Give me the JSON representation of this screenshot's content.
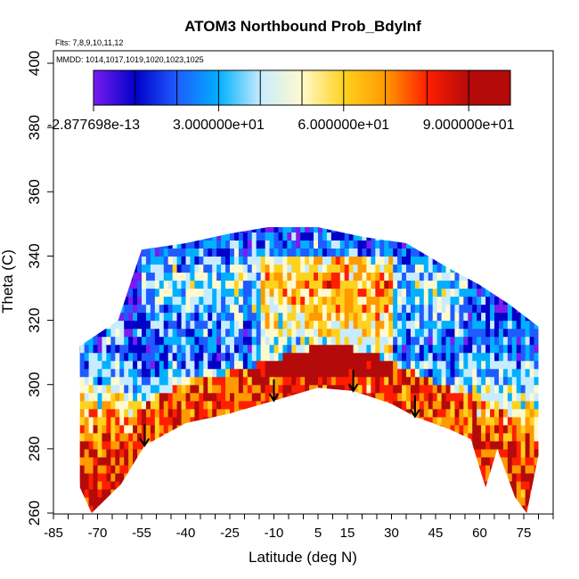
{
  "chart_data": {
    "type": "heatmap",
    "title": "ATOM3 Northbound Prob_BdyInf",
    "flights_note": "Flts: 7,8,9,10,11,12",
    "dates_note": "MMDD: 1014,1017,1019,1020,1023,1025",
    "xlabel": "Latitude (deg N)",
    "ylabel": "Theta (C)",
    "xlim": [
      -85,
      85
    ],
    "ylim": [
      260,
      400
    ],
    "x_ticks": [
      -85,
      -70,
      -55,
      -40,
      -25,
      -10,
      5,
      15,
      30,
      45,
      60,
      75
    ],
    "x_minor_step": 5,
    "y_ticks": [
      260,
      280,
      300,
      320,
      340,
      360,
      380,
      400
    ],
    "colorbar": {
      "ticks": [
        "-2.877698e-13",
        "3.000000e+01",
        "6.000000e+01",
        "9.000000e+01"
      ],
      "range": [
        0,
        100
      ],
      "n_bins": 10,
      "colors": [
        "#7a1cf0",
        "#0000c8",
        "#1f5cff",
        "#00b0ff",
        "#c8ecff",
        "#fffacd",
        "#ffd21e",
        "#ff9a00",
        "#ff1e00",
        "#b40a0a"
      ]
    },
    "tropopause_arrows": [
      {
        "lat": -54,
        "theta": 281
      },
      {
        "lat": -10,
        "theta": 295
      },
      {
        "lat": 17,
        "theta": 298
      },
      {
        "lat": 38,
        "theta": 290
      }
    ],
    "coverage_top": [
      {
        "lat": -76,
        "theta": 312
      },
      {
        "lat": -63,
        "theta": 320
      },
      {
        "lat": -55,
        "theta": 342
      },
      {
        "lat": -40,
        "theta": 344
      },
      {
        "lat": -25,
        "theta": 347
      },
      {
        "lat": -12,
        "theta": 349
      },
      {
        "lat": 5,
        "theta": 349
      },
      {
        "lat": 20,
        "theta": 346
      },
      {
        "lat": 35,
        "theta": 344
      },
      {
        "lat": 48,
        "theta": 337
      },
      {
        "lat": 60,
        "theta": 331
      },
      {
        "lat": 70,
        "theta": 325
      },
      {
        "lat": 80,
        "theta": 318
      }
    ],
    "coverage_bottom": [
      {
        "lat": -76,
        "theta": 268
      },
      {
        "lat": -72,
        "theta": 260
      },
      {
        "lat": -62,
        "theta": 269
      },
      {
        "lat": -54,
        "theta": 281
      },
      {
        "lat": -40,
        "theta": 288
      },
      {
        "lat": -25,
        "theta": 291
      },
      {
        "lat": -10,
        "theta": 295
      },
      {
        "lat": 5,
        "theta": 299
      },
      {
        "lat": 17,
        "theta": 298
      },
      {
        "lat": 30,
        "theta": 294
      },
      {
        "lat": 38,
        "theta": 290
      },
      {
        "lat": 50,
        "theta": 286
      },
      {
        "lat": 57,
        "theta": 283
      },
      {
        "lat": 62,
        "theta": 268
      },
      {
        "lat": 66,
        "theta": 280
      },
      {
        "lat": 72,
        "theta": 265
      },
      {
        "lat": 76,
        "theta": 260
      },
      {
        "lat": 80,
        "theta": 278
      }
    ],
    "field_profile": [
      {
        "theta": 262,
        "value": 88
      },
      {
        "theta": 275,
        "value": 88
      },
      {
        "theta": 283,
        "value": 78
      },
      {
        "theta": 292,
        "value": 60
      },
      {
        "theta": 300,
        "value": 40
      },
      {
        "theta": 310,
        "value": 25
      },
      {
        "theta": 320,
        "value": 35
      },
      {
        "theta": 330,
        "value": 45
      },
      {
        "theta": 340,
        "value": 30
      },
      {
        "theta": 350,
        "value": 20
      }
    ]
  }
}
